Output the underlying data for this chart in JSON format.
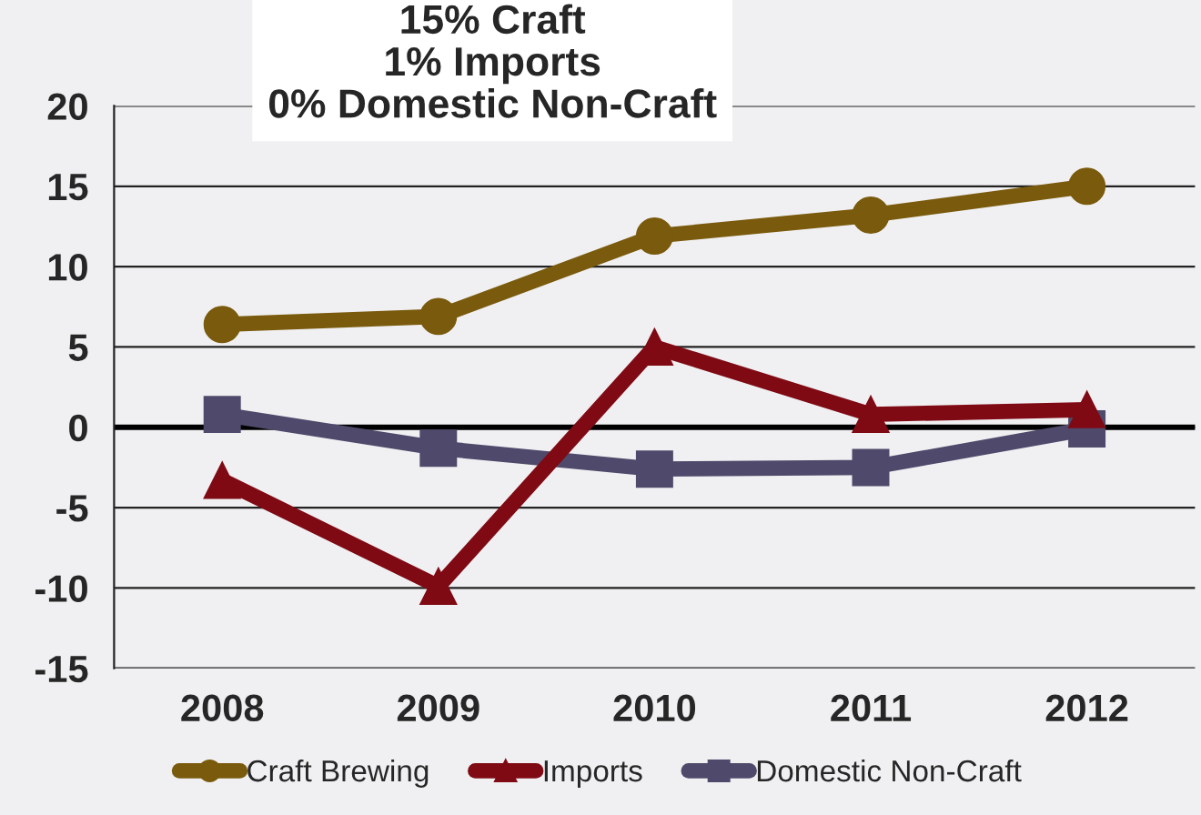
{
  "chart_data": {
    "type": "line",
    "title": "15% Craft\n1% Imports\n0% Domestic Non-Craft",
    "categories": [
      "2008",
      "2009",
      "2010",
      "2011",
      "2012"
    ],
    "series": [
      {
        "name": "Craft Brewing",
        "color": "#7a5a0c",
        "marker": "circle",
        "values": [
          6.4,
          6.9,
          11.9,
          13.2,
          15.0
        ]
      },
      {
        "name": "Imports",
        "color": "#7f0a14",
        "marker": "triangle",
        "values": [
          -3.3,
          -9.9,
          5.0,
          0.8,
          1.1
        ]
      },
      {
        "name": "Domestic Non-Craft",
        "color": "#4f4a6b",
        "marker": "square",
        "values": [
          0.8,
          -1.3,
          -2.6,
          -2.5,
          -0.1
        ]
      }
    ],
    "ylim": [
      -15,
      20
    ],
    "yticks": [
      -15,
      -10,
      -5,
      0,
      5,
      10,
      15,
      20
    ],
    "grid": "y",
    "legend": "bottom",
    "ref_lines": [
      {
        "axis": "y",
        "value": 0,
        "color": "#000000"
      }
    ]
  }
}
